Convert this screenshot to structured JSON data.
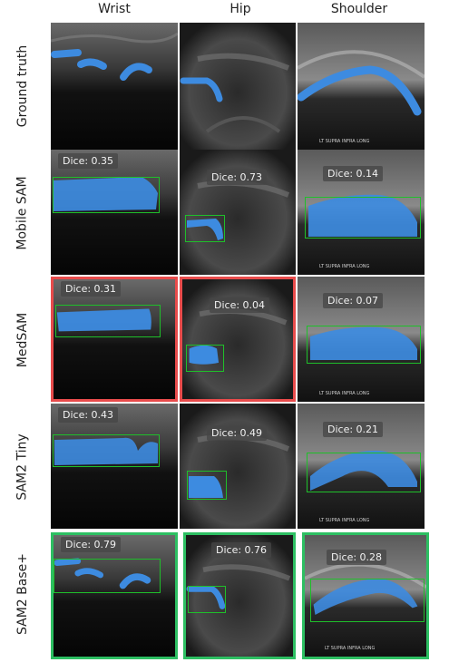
{
  "columns": [
    "Wrist",
    "Hip",
    "Shoulder"
  ],
  "rows": [
    "Ground truth",
    "Mobile SAM",
    "MedSAM",
    "SAM2 Tiny",
    "SAM2 Base+"
  ],
  "dice": {
    "mobile_sam": {
      "wrist": "Dice: 0.35",
      "hip": "Dice: 0.73",
      "shoulder": "Dice: 0.14"
    },
    "medsam": {
      "wrist": "Dice: 0.31",
      "hip": "Dice: 0.04",
      "shoulder": "Dice: 0.07"
    },
    "sam2_tiny": {
      "wrist": "Dice: 0.43",
      "hip": "Dice: 0.49",
      "shoulder": "Dice: 0.21"
    },
    "sam2_base": {
      "wrist": "Dice: 0.79",
      "hip": "Dice: 0.76",
      "shoulder": "Dice: 0.28"
    }
  },
  "shoulder_caption": "LT SUPRA INFRA LONG",
  "colors": {
    "mask": "#3d8be0",
    "box": "#1fbf2a",
    "worst_outline": "#e84b4b",
    "best_outline": "#2dbf62"
  }
}
